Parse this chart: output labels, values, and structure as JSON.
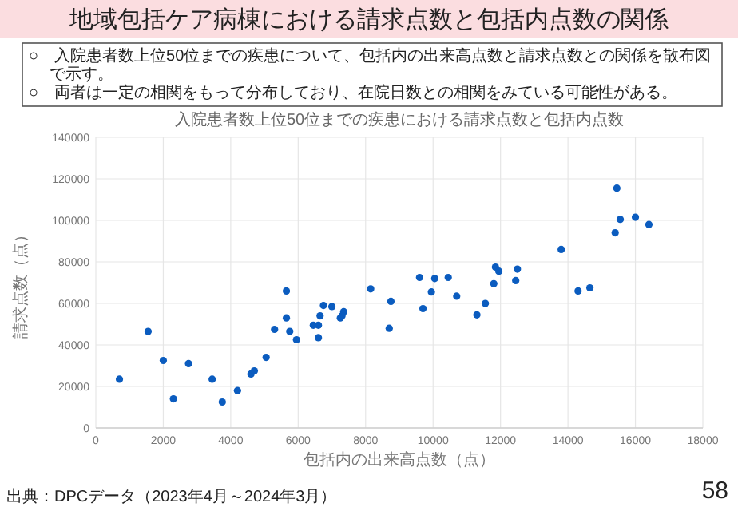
{
  "chart_data": {
    "type": "scatter",
    "title": "地域包括ケア病棟における請求点数と包括内点数の関係",
    "subtitle": "入院患者数上位50位までの疾患における請求点数と包括内点数",
    "xlabel": "包括内の出来高点数（点）",
    "ylabel": "請求点数（点）",
    "annotations": [
      "○　入院患者数上位50位までの疾患について、包括内の出来高点数と請求点数との関係を散布図で示す。",
      "○　両者は一定の相関をもって分布しており、在院日数との相関をみている可能性がある。",
      "出典：DPCデータ（2023年4月～2024年3月）",
      "58"
    ],
    "x": [
      700,
      1550,
      2000,
      2300,
      2750,
      3450,
      3750,
      4200,
      4600,
      4700,
      5050,
      5300,
      5650,
      5650,
      5750,
      5950,
      6450,
      6600,
      6600,
      6650,
      6750,
      7000,
      7250,
      7300,
      7350,
      8150,
      8750,
      8700,
      9600,
      10050,
      10450,
      9950,
      9700,
      10700,
      11300,
      11550,
      11800,
      11850,
      11950,
      12450,
      12500,
      13800,
      14300,
      14650,
      15400,
      15450,
      15550,
      16000,
      16400
    ],
    "series": [
      {
        "color": "#0b5cbf",
        "values": [
          23500,
          46500,
          32500,
          14000,
          31000,
          23500,
          12500,
          18000,
          26000,
          27500,
          34000,
          47500,
          53000,
          66000,
          46500,
          42500,
          49500,
          49500,
          43500,
          54000,
          59000,
          58500,
          53000,
          54000,
          56000,
          67000,
          61000,
          48000,
          72500,
          72000,
          72500,
          65500,
          57500,
          63500,
          54500,
          60000,
          69500,
          77500,
          75500,
          71000,
          76500,
          86000,
          66000,
          67500,
          94000,
          115500,
          100500,
          101500,
          98000
        ]
      }
    ],
    "xlim": [
      0,
      18000
    ],
    "xticks": [
      0,
      2000,
      4000,
      6000,
      8000,
      10000,
      12000,
      14000,
      16000,
      18000
    ],
    "ylim": [
      0,
      140000
    ],
    "yticks": [
      0,
      20000,
      40000,
      60000,
      80000,
      100000,
      120000,
      140000
    ],
    "grid": true,
    "marker": "circle"
  }
}
